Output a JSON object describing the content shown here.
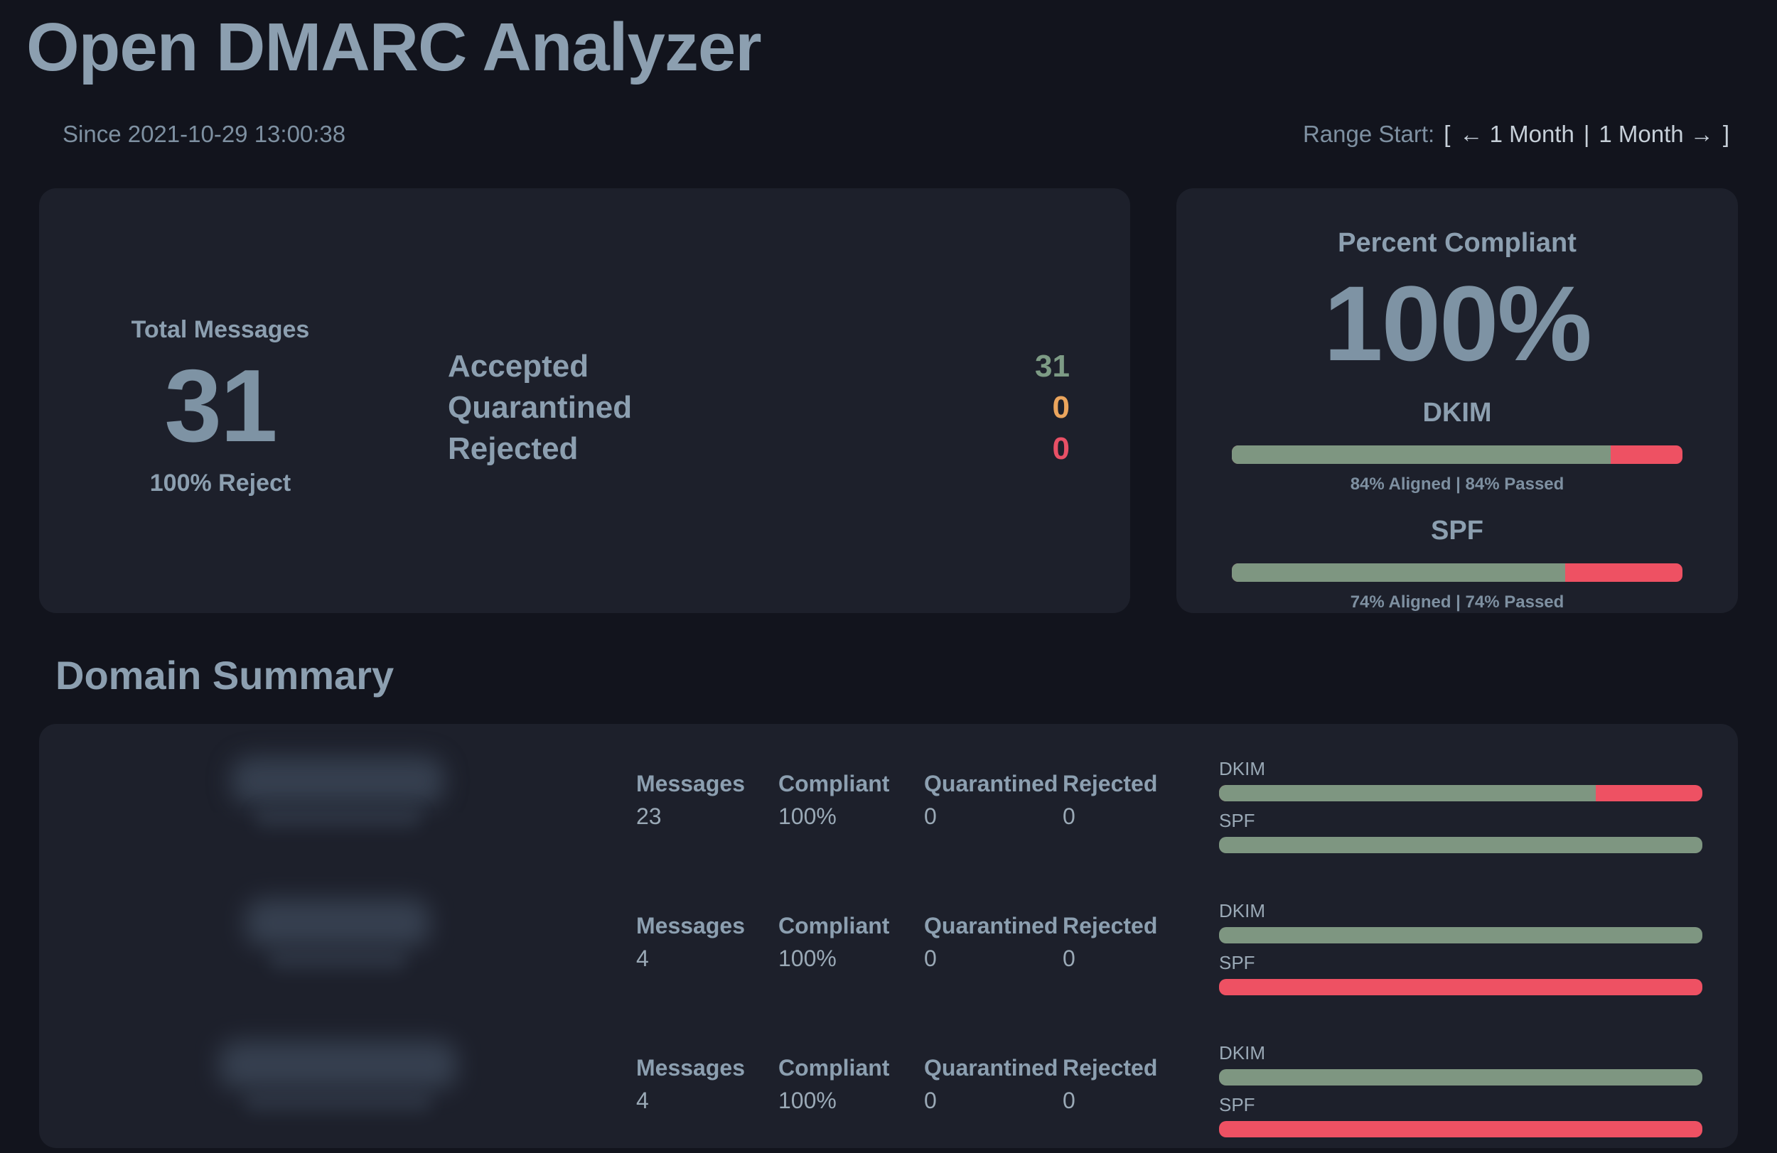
{
  "app": {
    "title": "Open DMARC Analyzer"
  },
  "header": {
    "since": "Since 2021-10-29 13:00:38",
    "range": {
      "label": "Range Start:",
      "bracket_open": "[",
      "prev_link": "← 1 Month",
      "separator": "|",
      "next_link": "1 Month →",
      "bracket_close": "]"
    }
  },
  "totals": {
    "label": "Total Messages",
    "value": "31",
    "policy": "100% Reject",
    "statuses": [
      {
        "label": "Accepted",
        "value": "31"
      },
      {
        "label": "Quarantined",
        "value": "0"
      },
      {
        "label": "Rejected",
        "value": "0"
      }
    ]
  },
  "compliance": {
    "title": "Percent Compliant",
    "value": "100%",
    "meters": [
      {
        "label": "DKIM",
        "pct": 84,
        "caption": "84% Aligned | 84% Passed"
      },
      {
        "label": "SPF",
        "pct": 74,
        "caption": "74% Aligned | 74% Passed"
      }
    ]
  },
  "domain_summary": {
    "title": "Domain Summary",
    "stat_labels": [
      "Messages",
      "Compliant",
      "Quarantined",
      "Rejected"
    ],
    "meter_labels": {
      "dkim": "DKIM",
      "spf": "SPF"
    },
    "rows": [
      {
        "stats": [
          "23",
          "100%",
          "0",
          "0"
        ],
        "dkim_pct": 78,
        "spf_pct": 100
      },
      {
        "stats": [
          "4",
          "100%",
          "0",
          "0"
        ],
        "dkim_pct": 100,
        "spf_pct": 0
      },
      {
        "stats": [
          "4",
          "100%",
          "0",
          "0"
        ],
        "dkim_pct": 100,
        "spf_pct": 0
      }
    ]
  },
  "colors": {
    "bg": "#12141d",
    "card": "#1d202b",
    "heading": "#8c9fb0",
    "muted": "#7e90a1",
    "text": "#9aa9b6",
    "bright": "#c6cfd8",
    "big-number": "#7e93a4",
    "green": "#7e9681",
    "red": "#ee5163",
    "green-text": "#7d9b85",
    "red-text": "#e85066",
    "orange": "#eba55d",
    "blob": "#4b5a6e"
  }
}
